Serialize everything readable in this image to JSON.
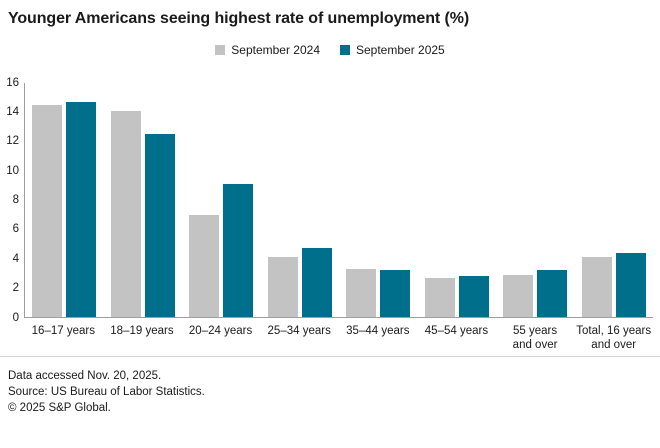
{
  "title": "Younger Americans seeing highest rate of unemployment (%)",
  "legend": [
    {
      "label": "September 2024",
      "color": "#c3c3c3"
    },
    {
      "label": "September 2025",
      "color": "#006f8c"
    }
  ],
  "chart_data": {
    "type": "bar",
    "title": "Younger Americans seeing highest rate of unemployment (%)",
    "categories": [
      "16–17 years",
      "18–19 years",
      "20–24 years",
      "25–34 years",
      "35–44 years",
      "45–54 years",
      "55 years\nand over",
      "Total, 16 years\nand over"
    ],
    "series": [
      {
        "name": "September 2024",
        "color": "#c3c3c3",
        "values": [
          14.5,
          14.1,
          7.0,
          4.1,
          3.3,
          2.7,
          2.9,
          4.1
        ]
      },
      {
        "name": "September 2025",
        "color": "#006f8c",
        "values": [
          14.7,
          12.5,
          9.1,
          4.7,
          3.2,
          2.8,
          3.2,
          4.4
        ]
      }
    ],
    "xlabel": "",
    "ylabel": "",
    "ylim": [
      0,
      16
    ],
    "y_ticks": [
      0,
      2,
      4,
      6,
      8,
      10,
      12,
      14,
      16
    ],
    "grid": false,
    "legend_position": "top-center"
  },
  "footer": {
    "line1": "Data accessed Nov. 20, 2025.",
    "line2": "Source: US Bureau of Labor Statistics.",
    "line3": "© 2025 S&P Global."
  }
}
